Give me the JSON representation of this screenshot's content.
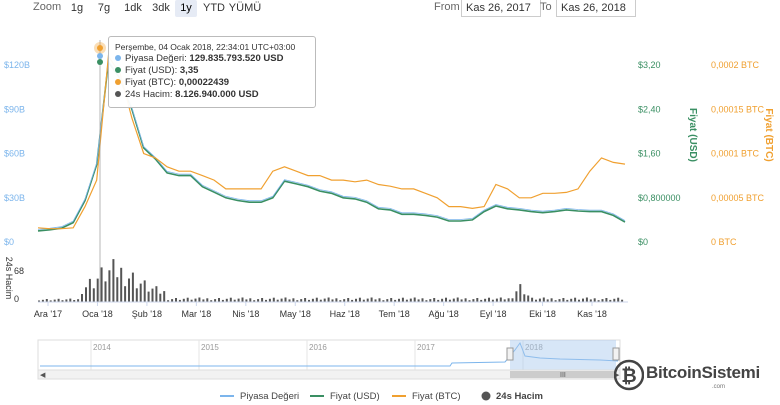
{
  "toolbar": {
    "zoom_label": "Zoom",
    "zoom_buttons": [
      "1g",
      "7g",
      "1dk",
      "3dk",
      "1y",
      "YTD",
      "YÜMÜ"
    ],
    "active_zoom": "1y",
    "from_label": "From",
    "from_value": "Kas 26, 2017",
    "to_label": "To",
    "to_value": "Kas 26, 2018"
  },
  "tooltip": {
    "date": "Perşembe, 04 Ocak 2018, 22:34:01 UTC+03:00",
    "rows": [
      {
        "label": "Piyasa Değeri: ",
        "value": "129.835.793.520 USD",
        "color": "#7cb5ec"
      },
      {
        "label": "Fiyat (USD): ",
        "value": "3,35",
        "color": "#3a8f63"
      },
      {
        "label": "Fiyat (BTC): ",
        "value": "0,00022439",
        "color": "#f0a030"
      },
      {
        "label": "24s Hacim: ",
        "value": "8.126.940.000 USD",
        "color": "#555555"
      }
    ]
  },
  "chart_data": {
    "type": "line",
    "x_tick_labels": [
      "Ara '17",
      "Oca '18",
      "Şub '18",
      "Mar '18",
      "Nis '18",
      "May '18",
      "Haz '18",
      "Tem '18",
      "Ağu '18",
      "Eyl '18",
      "Eki '18",
      "Kas '18"
    ],
    "y_left_ticks": [
      "$0",
      "$30B",
      "$60B",
      "$90B",
      "$120B"
    ],
    "y_left_range": [
      0,
      120000000000
    ],
    "y_usd_ticks": [
      "$0",
      "$0,800000",
      "$1,60",
      "$2,40",
      "$3,20"
    ],
    "y_usd_range": [
      0,
      3.2
    ],
    "y_usd_label": "Fiyat (USD)",
    "y_btc_ticks": [
      "0 BTC",
      "0,00005 BTC",
      "0,0001 BTC",
      "0,00015 BTC",
      "0,0002 BTC"
    ],
    "y_btc_range": [
      0,
      0.0002
    ],
    "y_btc_label": "Fiyat (BTC)",
    "volume_label": "24s Hacim",
    "volume_ticks": [
      "0",
      "68"
    ],
    "x": [
      0,
      2,
      4,
      6,
      8,
      10,
      12,
      14,
      16,
      18,
      20,
      22,
      24,
      26,
      28,
      30,
      32,
      34,
      36,
      38,
      40,
      42,
      44,
      46,
      48,
      50,
      52,
      54,
      56,
      58,
      60,
      62,
      64,
      66,
      68,
      70,
      72,
      74,
      76,
      78,
      80,
      82,
      84,
      86,
      88,
      90,
      92,
      94,
      96,
      98,
      100
    ],
    "series": [
      {
        "name": "Fiyat (USD)",
        "color": "#3a8f63",
        "values": [
          0.2,
          0.22,
          0.25,
          0.35,
          0.75,
          1.4,
          3.25,
          2.95,
          2.4,
          1.7,
          1.5,
          1.25,
          1.2,
          1.2,
          1.0,
          0.9,
          0.8,
          0.75,
          0.72,
          0.72,
          0.8,
          1.1,
          1.05,
          1.0,
          0.92,
          0.88,
          0.8,
          0.78,
          0.72,
          0.6,
          0.58,
          0.5,
          0.5,
          0.48,
          0.45,
          0.38,
          0.38,
          0.4,
          0.55,
          0.65,
          0.6,
          0.58,
          0.55,
          0.53,
          0.55,
          0.58,
          0.56,
          0.55,
          0.55,
          0.48,
          0.36
        ]
      },
      {
        "name": "Fiyat (BTC)",
        "color": "#f0a030",
        "values": [
          1.6e-05,
          1.5e-05,
          1.5e-05,
          1.6e-05,
          4e-05,
          7e-05,
          0.00021,
          0.00019,
          0.00014,
          0.0001,
          9.5e-05,
          8.5e-05,
          8e-05,
          8e-05,
          7.5e-05,
          7e-05,
          6e-05,
          6e-05,
          6e-05,
          6e-05,
          8e-05,
          8.5e-05,
          8e-05,
          7.5e-05,
          7.5e-05,
          7e-05,
          7e-05,
          6.8e-05,
          7e-05,
          6.5e-05,
          6.3e-05,
          6e-05,
          6e-05,
          5.5e-05,
          5e-05,
          4e-05,
          4e-05,
          3.8e-05,
          4e-05,
          6.5e-05,
          6e-05,
          5e-05,
          5e-05,
          5.5e-05,
          5.5e-05,
          5.6e-05,
          6e-05,
          8e-05,
          9.5e-05,
          9e-05,
          8.8e-05
        ]
      }
    ],
    "legend": [
      "Piyasa Değeri",
      "Fiyat (USD)",
      "Fiyat (BTC)",
      "24s Hacim"
    ],
    "legend_colors": [
      "#7cb5ec",
      "#3a8f63",
      "#f0a030",
      "#555555"
    ],
    "legend_position": "bottom",
    "grid": false
  },
  "navigator": {
    "year_labels": [
      "2014",
      "2015",
      "2016",
      "2017",
      "2018"
    ]
  },
  "brand": {
    "name": "BitcoinSistemi",
    "sub": ".com"
  }
}
